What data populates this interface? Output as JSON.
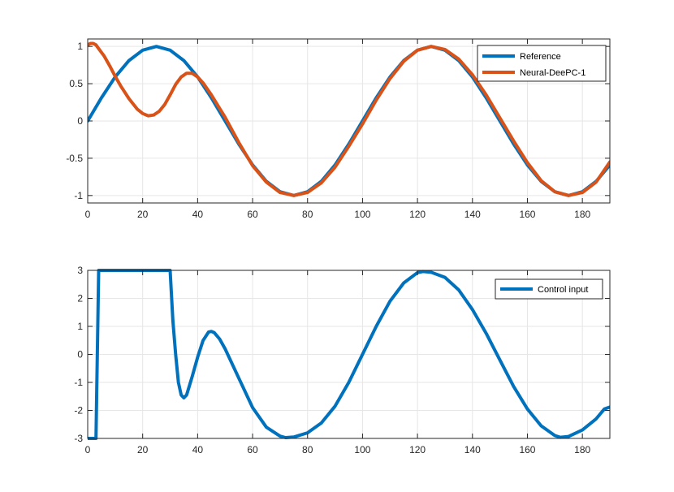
{
  "chart_data": [
    {
      "type": "line",
      "xlim": [
        0,
        190
      ],
      "ylim": [
        -1.1,
        1.1
      ],
      "x_ticks": [
        0,
        20,
        40,
        60,
        80,
        100,
        120,
        140,
        160,
        180
      ],
      "x_tick_labels": [
        "0",
        "20",
        "40",
        "60",
        "80",
        "100",
        "120",
        "140",
        "160",
        "180"
      ],
      "y_ticks": [
        -1,
        -0.5,
        0,
        0.5,
        1
      ],
      "y_tick_labels": [
        "-1",
        "-0.5",
        "0",
        "0.5",
        "1"
      ],
      "grid": true,
      "legend_position": "top-right",
      "series": [
        {
          "name": "Reference",
          "color": "#0072BD",
          "x": [
            0,
            5,
            10,
            15,
            20,
            25,
            30,
            35,
            40,
            45,
            50,
            55,
            60,
            65,
            70,
            75,
            80,
            85,
            90,
            95,
            100,
            105,
            110,
            115,
            120,
            125,
            130,
            135,
            140,
            145,
            150,
            155,
            160,
            165,
            170,
            175,
            180,
            185,
            190
          ],
          "y": [
            0,
            0.31,
            0.59,
            0.81,
            0.95,
            1.0,
            0.95,
            0.81,
            0.59,
            0.31,
            0,
            -0.31,
            -0.59,
            -0.81,
            -0.95,
            -1.0,
            -0.95,
            -0.81,
            -0.59,
            -0.31,
            0,
            0.31,
            0.59,
            0.81,
            0.95,
            1.0,
            0.95,
            0.81,
            0.59,
            0.31,
            0,
            -0.31,
            -0.59,
            -0.81,
            -0.95,
            -1.0,
            -0.95,
            -0.81,
            -0.59
          ]
        },
        {
          "name": "Neural-DeePC-1",
          "color": "#D95319",
          "x": [
            0,
            1,
            2,
            3,
            4,
            6,
            8,
            10,
            12,
            15,
            18,
            20,
            22,
            24,
            26,
            28,
            30,
            32,
            34,
            36,
            38,
            40,
            42,
            45,
            48,
            50,
            55,
            60,
            65,
            70,
            75,
            80,
            85,
            90,
            95,
            100,
            105,
            110,
            115,
            120,
            125,
            130,
            135,
            140,
            145,
            150,
            155,
            160,
            165,
            170,
            175,
            180,
            185,
            190
          ],
          "y": [
            1.02,
            1.04,
            1.04,
            1.02,
            0.97,
            0.87,
            0.74,
            0.6,
            0.47,
            0.3,
            0.16,
            0.1,
            0.07,
            0.08,
            0.13,
            0.22,
            0.35,
            0.49,
            0.59,
            0.64,
            0.64,
            0.59,
            0.51,
            0.35,
            0.17,
            0.05,
            -0.29,
            -0.6,
            -0.82,
            -0.96,
            -1.0,
            -0.96,
            -0.83,
            -0.62,
            -0.34,
            -0.04,
            0.28,
            0.57,
            0.8,
            0.95,
            1.0,
            0.96,
            0.83,
            0.62,
            0.35,
            0.04,
            -0.27,
            -0.56,
            -0.8,
            -0.95,
            -1.0,
            -0.96,
            -0.82,
            -0.55
          ]
        }
      ]
    },
    {
      "type": "line",
      "xlim": [
        0,
        190
      ],
      "ylim": [
        -3,
        3
      ],
      "x_ticks": [
        0,
        20,
        40,
        60,
        80,
        100,
        120,
        140,
        160,
        180
      ],
      "x_tick_labels": [
        "0",
        "20",
        "40",
        "60",
        "80",
        "100",
        "120",
        "140",
        "160",
        "180"
      ],
      "y_ticks": [
        -3,
        -2,
        -1,
        0,
        1,
        2,
        3
      ],
      "y_tick_labels": [
        "-3",
        "-2",
        "-1",
        "0",
        "1",
        "2",
        "3"
      ],
      "grid": true,
      "legend_position": "top-right",
      "series": [
        {
          "name": "Control input",
          "color": "#0072BD",
          "x": [
            0,
            3,
            4,
            10,
            20,
            30,
            31,
            32,
            33,
            34,
            35,
            36,
            38,
            40,
            42,
            44,
            45,
            46,
            48,
            50,
            55,
            60,
            65,
            70,
            72,
            75,
            80,
            85,
            90,
            95,
            100,
            105,
            110,
            115,
            120,
            122,
            125,
            130,
            135,
            140,
            145,
            150,
            155,
            160,
            165,
            170,
            172,
            175,
            180,
            185,
            188,
            190
          ],
          "y": [
            -3,
            -3,
            3,
            3,
            3,
            3,
            1.2,
            0,
            -1.0,
            -1.45,
            -1.55,
            -1.45,
            -0.8,
            -0.1,
            0.5,
            0.8,
            0.82,
            0.78,
            0.55,
            0.2,
            -0.85,
            -1.9,
            -2.6,
            -2.92,
            -2.97,
            -2.95,
            -2.8,
            -2.45,
            -1.85,
            -1.0,
            0,
            1.0,
            1.9,
            2.55,
            2.92,
            2.96,
            2.93,
            2.75,
            2.3,
            1.6,
            0.75,
            -0.2,
            -1.15,
            -1.95,
            -2.55,
            -2.9,
            -2.96,
            -2.93,
            -2.7,
            -2.3,
            -1.95,
            -1.88
          ]
        }
      ]
    }
  ]
}
